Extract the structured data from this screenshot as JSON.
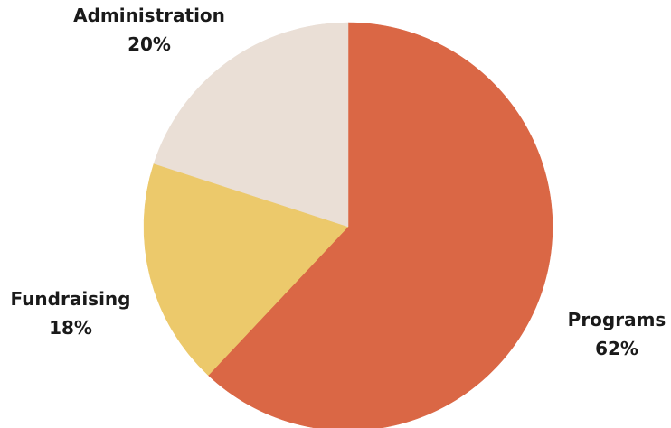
{
  "chart_data": {
    "type": "pie",
    "title": "",
    "slices": [
      {
        "label": "Programs",
        "percent_label": "62%",
        "value": 62,
        "color": "#DA6745"
      },
      {
        "label": "Fundraising",
        "percent_label": "18%",
        "value": 18,
        "color": "#ECC96B"
      },
      {
        "label": "Administration",
        "percent_label": "20%",
        "value": 20,
        "color": "#EADFD6"
      }
    ],
    "start_angle_deg": 0,
    "direction": "clockwise",
    "legend": "none"
  }
}
